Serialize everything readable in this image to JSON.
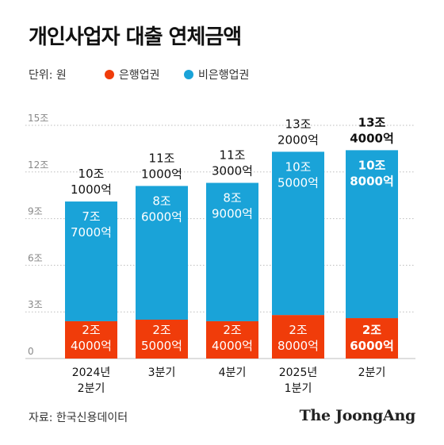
{
  "title": "개인사업자 대출 연체금액",
  "unit_label": "단위: 원",
  "source": "자료: 한국신용데이터",
  "logo": "The JoongAng",
  "colors": {
    "bank": "#f03c0a",
    "nonbank": "#1aa3d8",
    "grid": "#bdbdbd",
    "axis_text": "#888888"
  },
  "chart_data": {
    "type": "bar",
    "stacked": true,
    "unit": "조 원",
    "categories": [
      [
        "2024년",
        "2분기"
      ],
      [
        "3분기"
      ],
      [
        "4분기"
      ],
      [
        "2025년",
        "1분기"
      ],
      [
        "2분기"
      ]
    ],
    "series": [
      {
        "name": "은행업권",
        "color": "#f03c0a",
        "values": [
          2.4,
          2.5,
          2.4,
          2.8,
          2.6
        ],
        "labels": [
          [
            "2조",
            "4000억"
          ],
          [
            "2조",
            "5000억"
          ],
          [
            "2조",
            "4000억"
          ],
          [
            "2조",
            "8000억"
          ],
          [
            "2조",
            "6000억"
          ]
        ]
      },
      {
        "name": "비은행업권",
        "color": "#1aa3d8",
        "values": [
          7.7,
          8.6,
          8.9,
          10.5,
          10.8
        ],
        "labels": [
          [
            "7조",
            "7000억"
          ],
          [
            "8조",
            "6000억"
          ],
          [
            "8조",
            "9000억"
          ],
          [
            "10조",
            "5000억"
          ],
          [
            "10조",
            "8000억"
          ]
        ]
      }
    ],
    "totals": [
      10.1,
      11.1,
      11.3,
      13.2,
      13.4
    ],
    "total_labels": [
      [
        "10조",
        "1000억"
      ],
      [
        "11조",
        "1000억"
      ],
      [
        "11조",
        "3000억"
      ],
      [
        "13조",
        "2000억"
      ],
      [
        "13조",
        "4000억"
      ]
    ],
    "highlight_index": 4,
    "yticks": [
      0,
      3,
      6,
      9,
      12,
      15
    ],
    "ytick_labels": [
      "0",
      "3조",
      "6조",
      "9조",
      "12조",
      "15조"
    ],
    "ylim": [
      0,
      15
    ],
    "grid": true
  }
}
